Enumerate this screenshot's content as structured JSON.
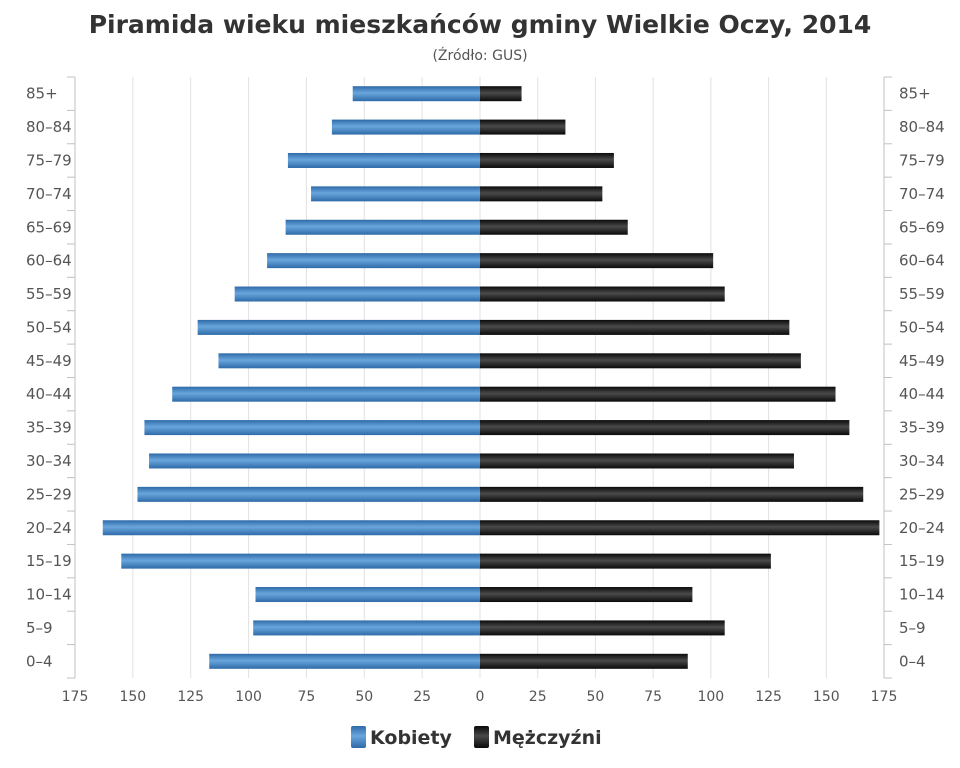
{
  "chart_data": {
    "type": "bar",
    "orientation": "horizontal",
    "title": "Piramida wieku mieszkańców gminy Wielkie Oczy, 2014",
    "subtitle": "(Źródło: GUS)",
    "categories": [
      "85+",
      "80–84",
      "75–79",
      "70–74",
      "65–69",
      "60–64",
      "55–59",
      "50–54",
      "45–49",
      "40–44",
      "35–39",
      "30–34",
      "25–29",
      "20–24",
      "15–19",
      "10–14",
      "5–9",
      "0–4"
    ],
    "series": [
      {
        "name": "Kobiety",
        "color": "#3f7fbf",
        "side": "left",
        "values": [
          55,
          64,
          83,
          73,
          84,
          92,
          106,
          122,
          113,
          133,
          145,
          143,
          148,
          163,
          155,
          97,
          98,
          117
        ]
      },
      {
        "name": "Mężczyźni",
        "color": "#1e1e1e",
        "side": "right",
        "values": [
          18,
          37,
          58,
          53,
          64,
          101,
          106,
          134,
          139,
          154,
          160,
          136,
          166,
          173,
          126,
          92,
          106,
          90
        ]
      }
    ],
    "x_ticks": [
      "175",
      "150",
      "125",
      "100",
      "75",
      "50",
      "25",
      "0",
      "25",
      "50",
      "75",
      "100",
      "125",
      "150",
      "175"
    ],
    "xlim": [
      -175,
      175
    ],
    "grid": true,
    "legend_position": "bottom-center"
  }
}
